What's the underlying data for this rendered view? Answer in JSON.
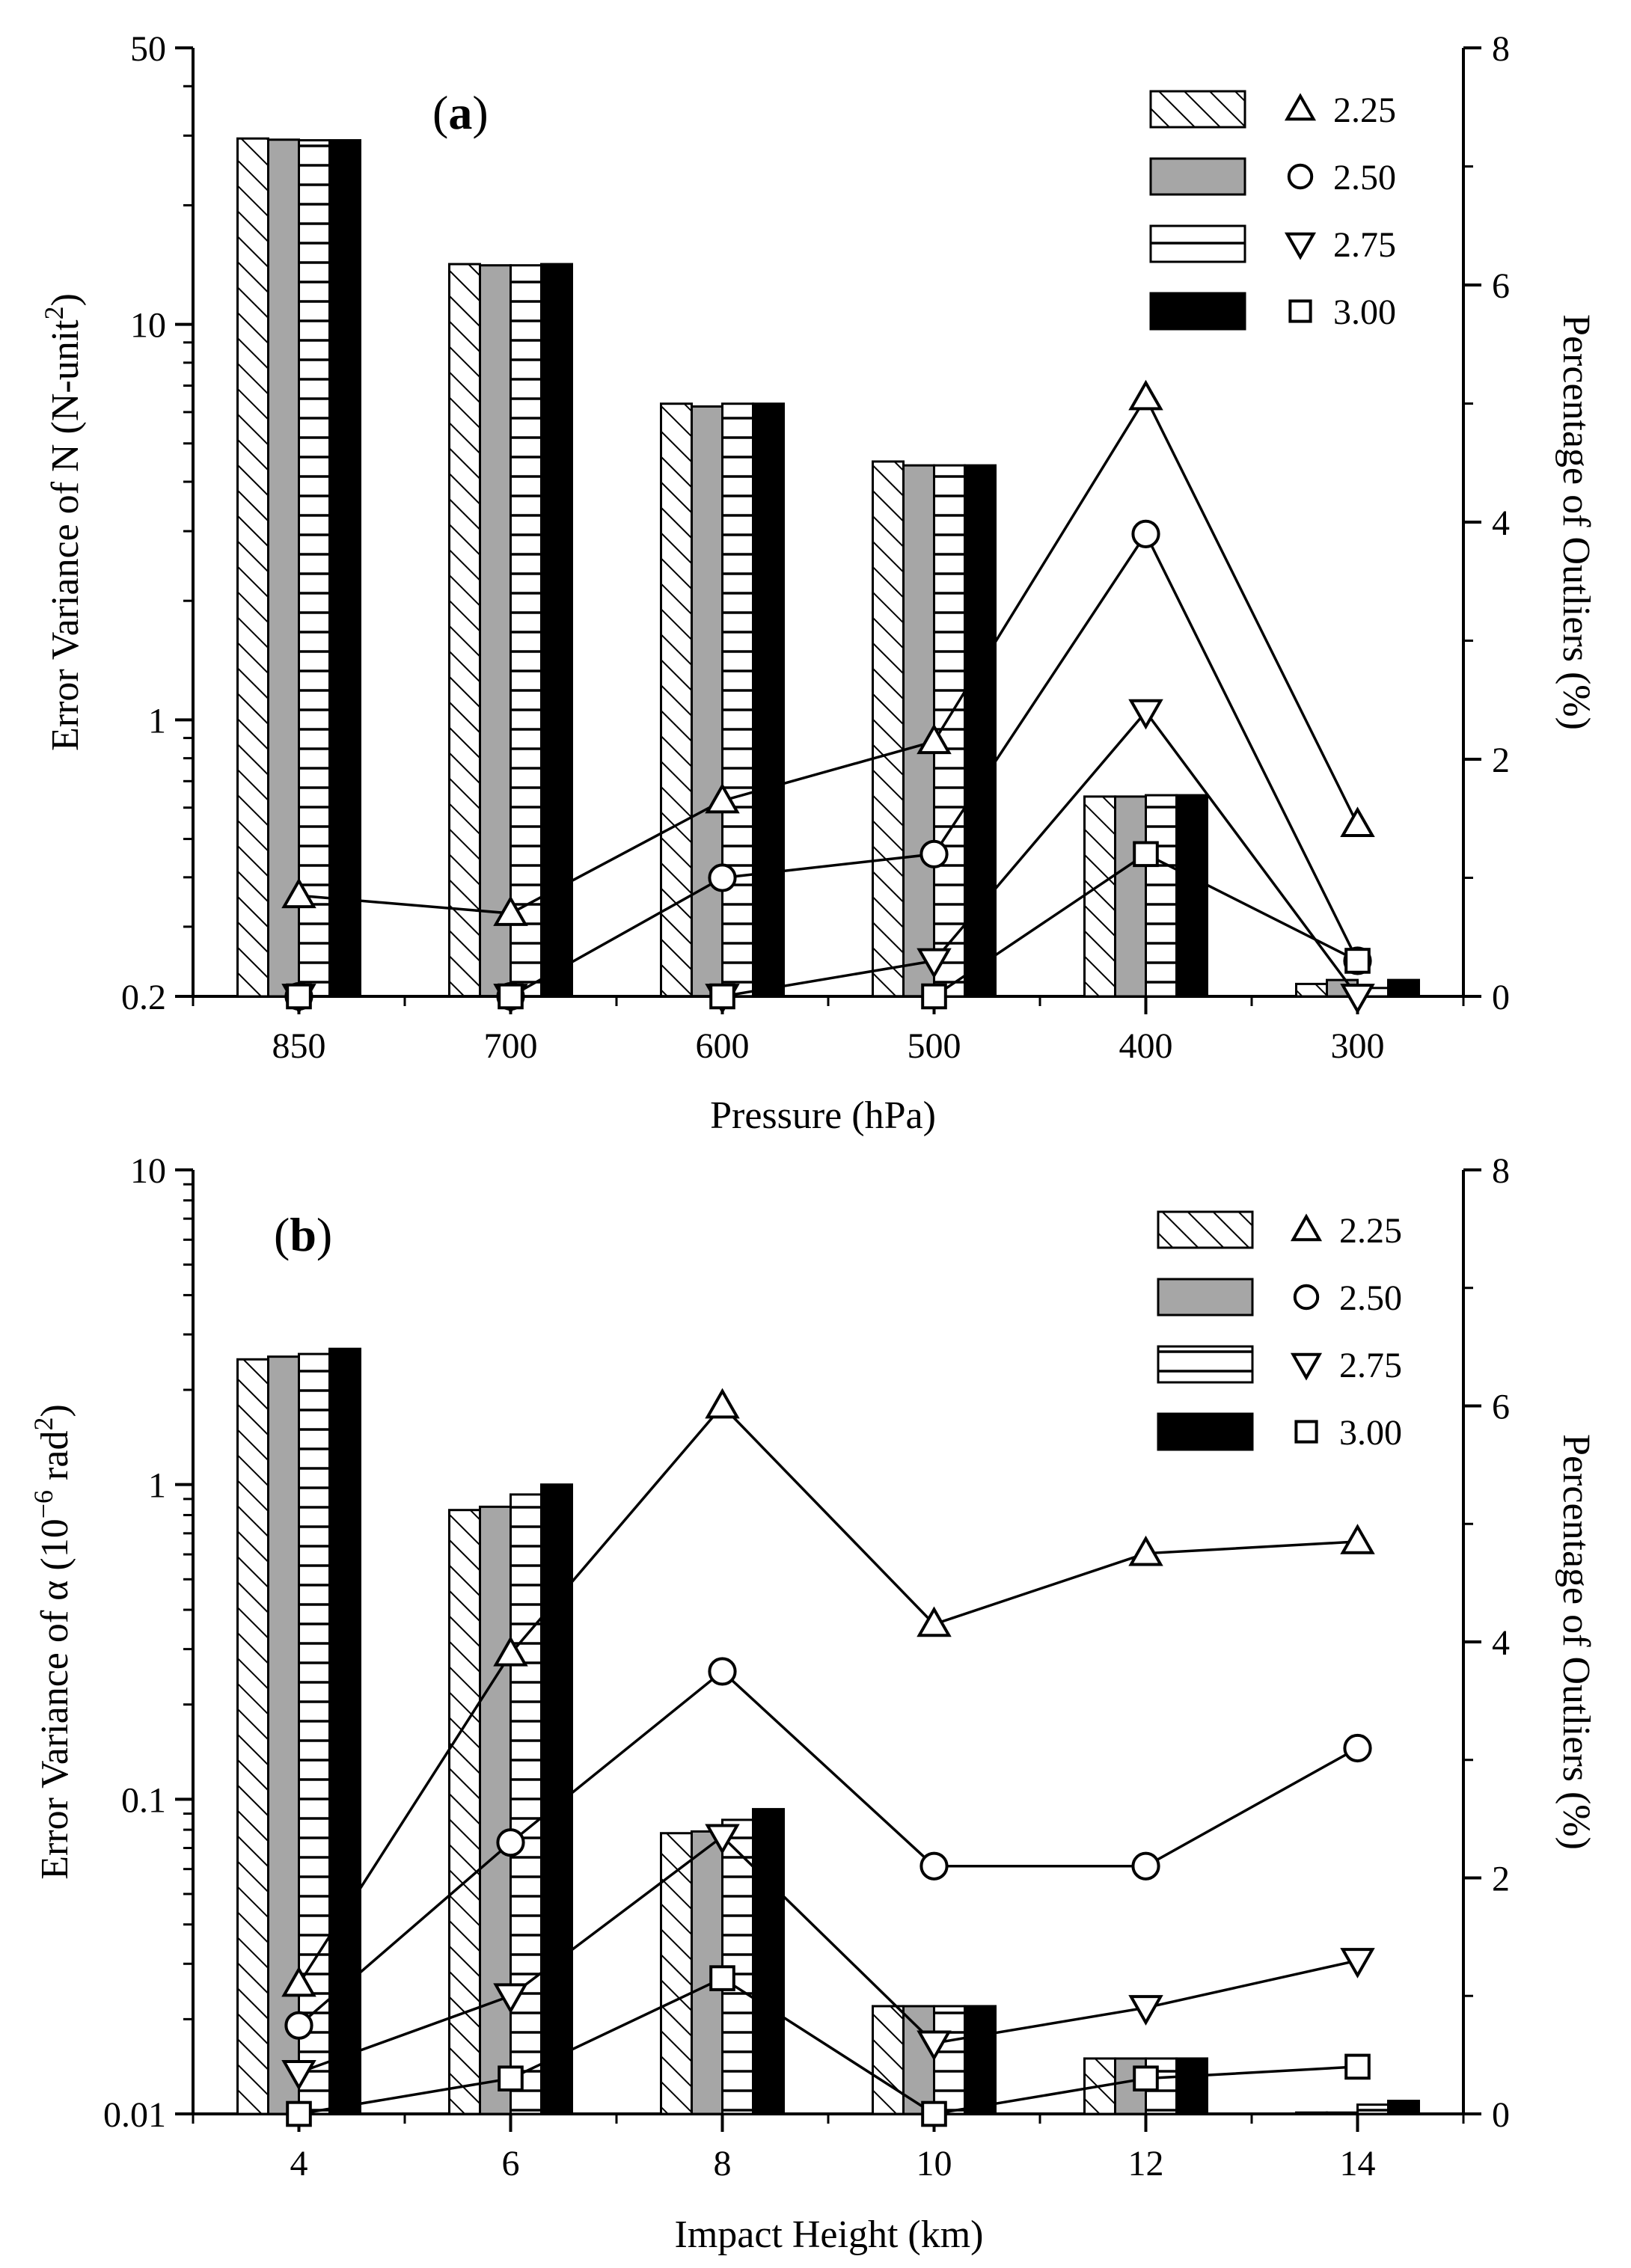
{
  "chart_data": [
    {
      "type": "bar",
      "panel_label": "(a)",
      "panel_letter": "a",
      "xlabel": "Pressure (hPa)",
      "ylabel": "Error Variance of N (N-unit",
      "ylabel_sup": "2",
      "ylabel_close": ")",
      "y2label": "Percentage of Outliers (%)",
      "yscale": "log",
      "ylim": [
        0.2,
        50
      ],
      "yticks": [
        0.2,
        1,
        10,
        50
      ],
      "ytick_labels": [
        "0.2",
        "1",
        "10",
        "50"
      ],
      "y2lim": [
        0,
        8
      ],
      "y2ticks": [
        0,
        2,
        4,
        6,
        8
      ],
      "y2tick_labels": [
        "0",
        "2",
        "4",
        "6",
        "8"
      ],
      "categories": [
        "850",
        "700",
        "600",
        "500",
        "400",
        "300"
      ],
      "series": [
        {
          "name": "2.25",
          "fill": "hatch-diagonal",
          "values": [
            29.5,
            14.2,
            6.3,
            4.5,
            0.64,
            0.215
          ]
        },
        {
          "name": "2.50",
          "fill": "gray",
          "values": [
            29.3,
            14.1,
            6.2,
            4.4,
            0.64,
            0.22
          ]
        },
        {
          "name": "2.75",
          "fill": "hatch-horizontal",
          "values": [
            29.2,
            14.1,
            6.3,
            4.4,
            0.645,
            0.21
          ]
        },
        {
          "name": "3.00",
          "fill": "black",
          "values": [
            29.2,
            14.2,
            6.3,
            4.4,
            0.645,
            0.22
          ]
        }
      ],
      "line_series": [
        {
          "name": "2.25",
          "marker": "triangle-up",
          "values": [
            0.85,
            0.7,
            1.65,
            2.15,
            5.05,
            1.45
          ]
        },
        {
          "name": "2.50",
          "marker": "circle",
          "values": [
            0.0,
            0.0,
            1.0,
            1.2,
            3.9,
            0.3
          ]
        },
        {
          "name": "2.75",
          "marker": "triangle-down",
          "values": [
            0.0,
            0.0,
            0.0,
            0.3,
            2.4,
            0.0
          ]
        },
        {
          "name": "3.00",
          "marker": "square",
          "values": [
            0.0,
            0.0,
            0.0,
            0.0,
            1.2,
            0.3
          ]
        }
      ],
      "legend": [
        "2.25",
        "2.50",
        "2.75",
        "3.00"
      ],
      "legend_position": "top-right"
    },
    {
      "type": "bar",
      "panel_label": "(b)",
      "panel_letter": "b",
      "xlabel": "Impact Height (km)",
      "ylabel": "Error Variance of α (10",
      "ylabel_sup": "−6",
      "ylabel_mid": " rad",
      "ylabel_sup2": "2",
      "ylabel_close": ")",
      "y2label": "Percentage of Outliers (%)",
      "yscale": "log",
      "ylim": [
        0.01,
        10
      ],
      "yticks": [
        0.01,
        0.1,
        1,
        10
      ],
      "ytick_labels": [
        "0.01",
        "0.1",
        "1",
        "10"
      ],
      "y2lim": [
        0,
        8
      ],
      "y2ticks": [
        0,
        2,
        4,
        6,
        8
      ],
      "y2tick_labels": [
        "0",
        "2",
        "4",
        "6",
        "8"
      ],
      "categories": [
        "4",
        "6",
        "8",
        "10",
        "12",
        "14"
      ],
      "series": [
        {
          "name": "2.25",
          "fill": "hatch-diagonal",
          "values": [
            2.5,
            0.83,
            0.078,
            0.022,
            0.015,
            0.0101
          ]
        },
        {
          "name": "2.50",
          "fill": "gray",
          "values": [
            2.55,
            0.85,
            0.079,
            0.022,
            0.015,
            0.0101
          ]
        },
        {
          "name": "2.75",
          "fill": "hatch-horizontal",
          "values": [
            2.6,
            0.93,
            0.086,
            0.022,
            0.015,
            0.0107
          ]
        },
        {
          "name": "3.00",
          "fill": "black",
          "values": [
            2.7,
            1.0,
            0.093,
            0.022,
            0.015,
            0.011
          ]
        }
      ],
      "line_series": [
        {
          "name": "2.25",
          "marker": "triangle-up",
          "values": [
            1.1,
            3.9,
            6.0,
            4.15,
            4.75,
            4.85
          ]
        },
        {
          "name": "2.50",
          "marker": "circle",
          "values": [
            0.75,
            2.3,
            3.75,
            2.1,
            2.1,
            3.1
          ]
        },
        {
          "name": "2.75",
          "marker": "triangle-down",
          "values": [
            0.35,
            1.0,
            2.35,
            0.6,
            0.9,
            1.3
          ]
        },
        {
          "name": "3.00",
          "marker": "square",
          "values": [
            0.0,
            0.3,
            1.15,
            0.0,
            0.3,
            0.4
          ]
        }
      ],
      "legend": [
        "2.25",
        "2.50",
        "2.75",
        "3.00"
      ],
      "legend_position": "top-right"
    }
  ]
}
